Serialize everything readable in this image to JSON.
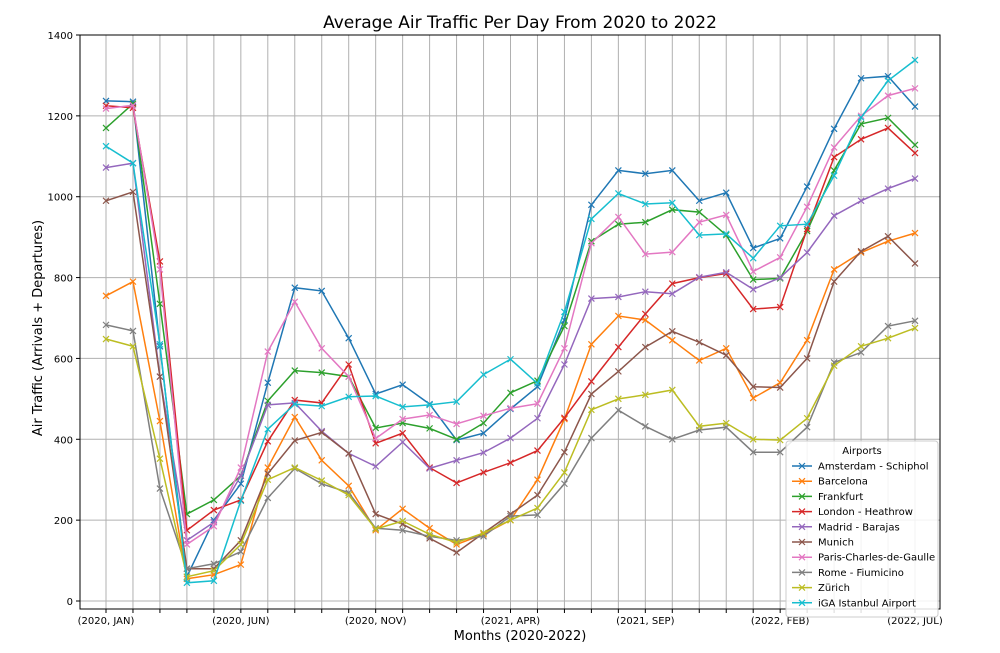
{
  "chart_data": {
    "type": "line",
    "title": "Average Air Traffic Per Day From 2020 to 2022",
    "xlabel": "Months (2020-2022)",
    "ylabel": "Air Traffic (Arrivals + Departures)",
    "ylim": [
      0,
      1400
    ],
    "yticks": [
      "0",
      "200",
      "400",
      "600",
      "800",
      "1000",
      "1200",
      "1400"
    ],
    "yticks_values": [
      0,
      200,
      400,
      600,
      800,
      1000,
      1200,
      1400
    ],
    "x_months": [
      "2020-01",
      "2020-02",
      "2020-03",
      "2020-04",
      "2020-05",
      "2020-06",
      "2020-07",
      "2020-08",
      "2020-09",
      "2020-10",
      "2020-11",
      "2020-12",
      "2021-01",
      "2021-02",
      "2021-03",
      "2021-04",
      "2021-05",
      "2021-06",
      "2021-07",
      "2021-08",
      "2021-09",
      "2021-10",
      "2021-11",
      "2021-12",
      "2022-01",
      "2022-02",
      "2022-03",
      "2022-04",
      "2022-05",
      "2022-06",
      "2022-07"
    ],
    "x_tick_labels": [
      {
        "month": "2020-01",
        "label": "(2020, JAN)"
      },
      {
        "month": "2020-06",
        "label": "(2020, JUN)"
      },
      {
        "month": "2020-11",
        "label": "(2020, NOV)"
      },
      {
        "month": "2021-04",
        "label": "(2021, APR)"
      },
      {
        "month": "2021-09",
        "label": "(2021, SEP)"
      },
      {
        "month": "2022-02",
        "label": "(2022, FEB)"
      },
      {
        "month": "2022-07",
        "label": "(2022, JUL)"
      }
    ],
    "grid": true,
    "legend_title": "Airports",
    "legend_position": "lower-right",
    "series": [
      {
        "name": "Amsterdam - Schiphol",
        "color": "#1f77b4",
        "values": [
          1237,
          1235,
          630,
          60,
          200,
          290,
          540,
          775,
          767,
          650,
          512,
          535,
          487,
          398,
          415,
          475,
          530,
          695,
          980,
          1065,
          1057,
          1065,
          990,
          1010,
          873,
          897,
          1025,
          1168,
          1293,
          1298,
          1223
        ]
      },
      {
        "name": "Barcelona",
        "color": "#ff7f0e",
        "values": [
          755,
          790,
          445,
          55,
          65,
          90,
          330,
          455,
          348,
          285,
          175,
          228,
          180,
          140,
          165,
          200,
          300,
          450,
          635,
          705,
          695,
          645,
          595,
          625,
          502,
          540,
          645,
          820,
          862,
          890,
          910
        ]
      },
      {
        "name": "Frankfurt",
        "color": "#2ca02c",
        "values": [
          1170,
          1230,
          735,
          215,
          250,
          310,
          495,
          570,
          565,
          555,
          428,
          440,
          427,
          400,
          440,
          515,
          545,
          680,
          890,
          932,
          937,
          968,
          962,
          905,
          795,
          798,
          915,
          1065,
          1180,
          1195,
          1128
        ]
      },
      {
        "name": "London - Heathrow",
        "color": "#d62728",
        "values": [
          1225,
          1220,
          840,
          175,
          225,
          250,
          395,
          497,
          490,
          585,
          390,
          415,
          330,
          292,
          318,
          342,
          372,
          453,
          543,
          628,
          710,
          785,
          800,
          810,
          722,
          727,
          920,
          1098,
          1142,
          1170,
          1108
        ]
      },
      {
        "name": "Madrid - Barajas",
        "color": "#9467bd",
        "values": [
          1072,
          1083,
          555,
          150,
          195,
          310,
          485,
          490,
          420,
          365,
          333,
          393,
          328,
          348,
          367,
          403,
          452,
          585,
          748,
          752,
          765,
          760,
          801,
          813,
          771,
          800,
          862,
          953,
          990,
          1020,
          1045
        ]
      },
      {
        "name": "Munich",
        "color": "#8c564b",
        "values": [
          990,
          1012,
          555,
          80,
          80,
          150,
          315,
          397,
          417,
          365,
          215,
          190,
          155,
          120,
          168,
          215,
          262,
          368,
          512,
          568,
          628,
          667,
          640,
          608,
          530,
          528,
          600,
          790,
          865,
          902,
          835
        ]
      },
      {
        "name": "Paris-Charles-de-Gaulle",
        "color": "#e377c2",
        "values": [
          1218,
          1226,
          820,
          140,
          185,
          330,
          617,
          740,
          625,
          555,
          402,
          450,
          460,
          438,
          458,
          477,
          488,
          625,
          885,
          950,
          858,
          863,
          937,
          955,
          815,
          850,
          975,
          1122,
          1200,
          1250,
          1268
        ]
      },
      {
        "name": "Rome - Fiumicino",
        "color": "#7f7f7f",
        "values": [
          683,
          668,
          278,
          80,
          92,
          122,
          255,
          328,
          290,
          268,
          180,
          175,
          160,
          150,
          160,
          210,
          213,
          290,
          403,
          472,
          432,
          400,
          423,
          430,
          368,
          368,
          430,
          590,
          615,
          680,
          693
        ]
      },
      {
        "name": "Zürich",
        "color": "#bcbd22",
        "values": [
          648,
          630,
          352,
          60,
          75,
          140,
          300,
          330,
          298,
          262,
          178,
          198,
          165,
          145,
          168,
          200,
          230,
          318,
          473,
          500,
          510,
          522,
          432,
          440,
          400,
          398,
          452,
          582,
          630,
          650,
          675
        ]
      },
      {
        "name": "iGA Istanbul Airport",
        "color": "#17becf",
        "values": [
          1125,
          1083,
          635,
          45,
          50,
          248,
          425,
          487,
          482,
          505,
          507,
          480,
          485,
          493,
          560,
          598,
          538,
          715,
          945,
          1008,
          982,
          985,
          905,
          908,
          848,
          928,
          932,
          1052,
          1196,
          1287,
          1338
        ]
      }
    ]
  }
}
